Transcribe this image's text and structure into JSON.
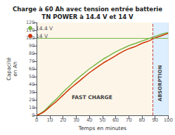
{
  "chart_data": {
    "type": "line",
    "title": "Charge à 60 Ah avec tension entrée batterie\nTN POWER à 14.4 V et 14 V",
    "xlabel": "Temps en minutes",
    "ylabel": "Capacité\nen Ah",
    "x": [
      0,
      5,
      10,
      15,
      20,
      25,
      30,
      35,
      40,
      45,
      50,
      55,
      60,
      65,
      70,
      75,
      80,
      85,
      90,
      95,
      100
    ],
    "series": [
      {
        "name": "14.4 V",
        "color": "#7ab648",
        "values": [
          0,
          5,
          13,
          21,
          30,
          38,
          46,
          53,
          60,
          66,
          72,
          77,
          82,
          86,
          90,
          93,
          96,
          99,
          102,
          105,
          107
        ]
      },
      {
        "name": "14 V",
        "color": "#cc3300",
        "values": [
          0,
          4,
          11,
          18,
          26,
          34,
          41,
          48,
          55,
          61,
          67,
          72,
          77,
          82,
          86,
          89,
          93,
          96,
          100,
          103,
          106
        ]
      }
    ],
    "xlim": [
      0,
      100
    ],
    "ylim": [
      0,
      120
    ],
    "xticks": [
      0,
      10,
      20,
      30,
      40,
      50,
      60,
      70,
      80,
      90,
      100
    ],
    "yticks": [
      0,
      10,
      20,
      30,
      40,
      50,
      60,
      70,
      80,
      90,
      100,
      110,
      120
    ],
    "grid": true,
    "legend": "upper left",
    "reference_lines": [
      {
        "axis": "y",
        "value": 100,
        "color": "#7ab648",
        "line_style": "solid"
      },
      {
        "axis": "x",
        "value": 88,
        "color": "#cc4444",
        "line_style": "dashed"
      }
    ],
    "regions": [
      {
        "x": [
          0,
          88
        ],
        "color": "#fdf6e8"
      },
      {
        "x": [
          88,
          100
        ],
        "color": "#ddeeff"
      }
    ],
    "annotations": [
      {
        "text": "FAST CHARGE",
        "x": 42,
        "y": 18,
        "orientation": "horizontal"
      },
      {
        "text": "ABSORPTION",
        "x": 94,
        "y": 18,
        "orientation": "vertical"
      }
    ]
  }
}
